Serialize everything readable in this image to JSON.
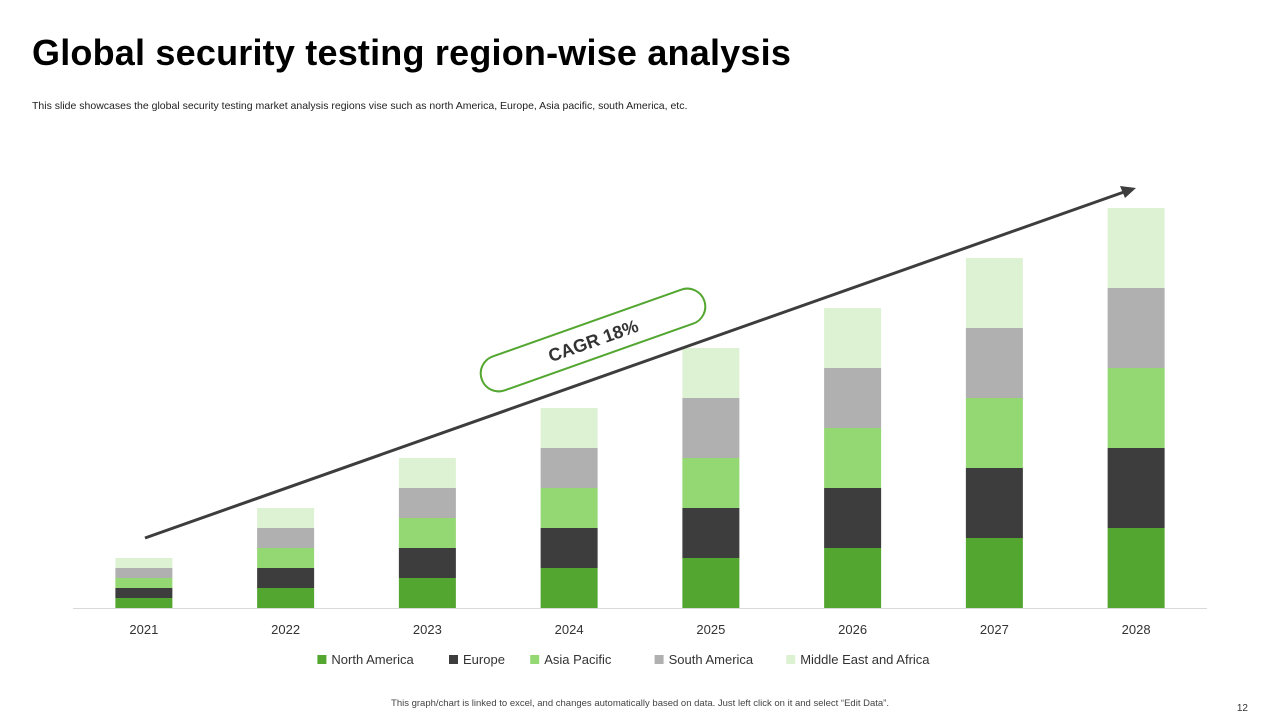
{
  "slide": {
    "title": "Global security testing region-wise analysis",
    "subtitle": "This slide showcases the global security testing market analysis regions vise such as north America, Europe, Asia pacific, south America, etc.",
    "footnote": "This graph/chart is linked to excel, and changes automatically based on data. Just left click on it and select “Edit Data”.",
    "page_number": "12"
  },
  "chart_data": {
    "type": "bar",
    "stacked": true,
    "categories": [
      "2021",
      "2022",
      "2023",
      "2024",
      "2025",
      "2026",
      "2027",
      "2028"
    ],
    "series": [
      {
        "name": "North America",
        "color": "#53A630",
        "values": [
          1,
          2,
          3,
          4,
          5,
          6,
          7,
          8
        ]
      },
      {
        "name": "Europe",
        "color": "#3D3D3D",
        "values": [
          1,
          2,
          3,
          4,
          5,
          6,
          7,
          8
        ]
      },
      {
        "name": "Asia Pacific",
        "color": "#94D874",
        "values": [
          1,
          2,
          3,
          4,
          5,
          6,
          7,
          8
        ]
      },
      {
        "name": "South America",
        "color": "#B0B0B0",
        "values": [
          1,
          2,
          3,
          4,
          6,
          6,
          7,
          8
        ]
      },
      {
        "name": "Middle East and Africa",
        "color": "#DDF2D3",
        "values": [
          1,
          2,
          3,
          4,
          5,
          6,
          7,
          8
        ]
      }
    ],
    "ylim": [
      0,
      40
    ],
    "legend_position": "bottom",
    "grid": false,
    "annotation": {
      "text": "CAGR 18%",
      "border_color": "#53A630",
      "arrow_color": "#3D3D3D"
    }
  }
}
